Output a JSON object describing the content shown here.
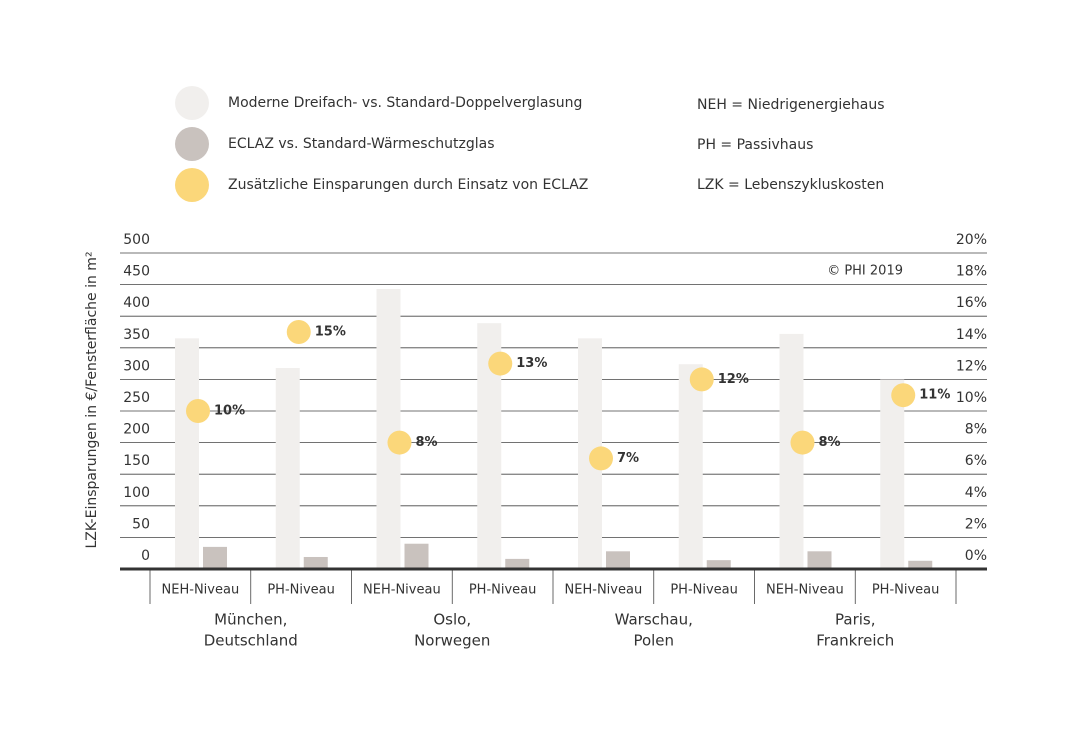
{
  "chart_data": {
    "type": "bar",
    "y_label": "LZK-Einsparungen in €/Fensterfläche in m²",
    "annotation": "© PHI 2019",
    "notes": [
      "NEH = Niedrigenergiehaus",
      "PH = Passivhaus",
      "LZK = Lebenszykluskosten"
    ],
    "categories": [
      "NEH-Niveau",
      "PH-Niveau",
      "NEH-Niveau",
      "PH-Niveau",
      "NEH-Niveau",
      "PH-Niveau",
      "NEH-Niveau",
      "PH-Niveau"
    ],
    "groups": [
      [
        "München,",
        "Deutschland"
      ],
      [
        "Oslo,",
        "Norwegen"
      ],
      [
        "Warschau,",
        "Polen"
      ],
      [
        "Paris,",
        "Frankreich"
      ]
    ],
    "series": [
      {
        "name": "Moderne Dreifach- vs. Standard-Doppelverglasung",
        "color": "#f1efed",
        "values": [
          365,
          318,
          443,
          389,
          365,
          324,
          372,
          300
        ]
      },
      {
        "name": "ECLAZ vs. Standard-Wärmeschutzglas",
        "color": "#c9c2be",
        "values": [
          35,
          19,
          40,
          16,
          28,
          14,
          28,
          13
        ]
      },
      {
        "name": "Zusätzliche Einsparungen durch Einsatz von ECLAZ",
        "color": "#fbd77a",
        "type": "scatter",
        "axis": "y2",
        "values": [
          10,
          15,
          8,
          13,
          7,
          12,
          8,
          11
        ],
        "value_labels": [
          "10%",
          "15%",
          "8%",
          "13%",
          "7%",
          "12%",
          "8%",
          "11%"
        ]
      }
    ],
    "ylim": [
      0,
      500
    ],
    "yticks": [
      0,
      50,
      100,
      150,
      200,
      250,
      300,
      350,
      400,
      450,
      500
    ],
    "y2lim": [
      0,
      20
    ],
    "y2ticks": [
      {
        "value": 0,
        "label": "0%"
      },
      {
        "value": 2,
        "label": "2%"
      },
      {
        "value": 4,
        "label": "4%"
      },
      {
        "value": 6,
        "label": "6%"
      },
      {
        "value": 8,
        "label": "8%"
      },
      {
        "value": 10,
        "label": "10%"
      },
      {
        "value": 12,
        "label": "12%"
      },
      {
        "value": 14,
        "label": "14%"
      },
      {
        "value": 16,
        "label": "16%"
      },
      {
        "value": 18,
        "label": "18%"
      },
      {
        "value": 20,
        "label": "20%"
      }
    ],
    "grid": true
  }
}
